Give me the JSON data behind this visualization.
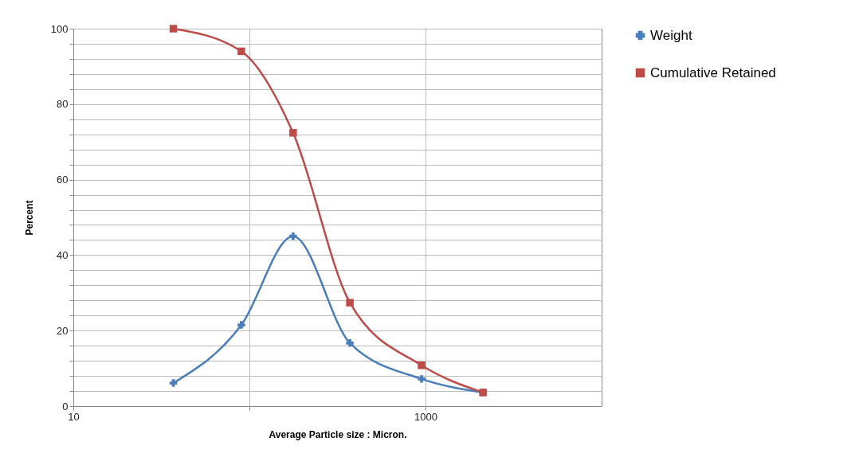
{
  "chart_data": {
    "type": "line",
    "xlabel": "Average Particle size : Micron.",
    "ylabel": "Percent",
    "x": [
      37,
      90,
      177,
      372,
      950,
      2120
    ],
    "log": "x",
    "xlim": [
      10,
      10000
    ],
    "xticks": [
      10,
      {
        "value": 100,
        "label": null
      },
      1000
    ],
    "ylim": [
      0,
      100
    ],
    "yticks": [
      0,
      {
        "value": 4,
        "label": null
      },
      {
        "value": 8,
        "label": null
      },
      {
        "value": 12,
        "label": null
      },
      {
        "value": 16,
        "label": null
      },
      20,
      {
        "value": 24,
        "label": null
      },
      {
        "value": 28,
        "label": null
      },
      {
        "value": 32,
        "label": null
      },
      {
        "value": 36,
        "label": null
      },
      40,
      {
        "value": 44,
        "label": null
      },
      {
        "value": 48,
        "label": null
      },
      {
        "value": 52,
        "label": null
      },
      {
        "value": 56,
        "label": null
      },
      60,
      {
        "value": 64,
        "label": null
      },
      {
        "value": 68,
        "label": null
      },
      {
        "value": 72,
        "label": null
      },
      {
        "value": 76,
        "label": null
      },
      80,
      {
        "value": 84,
        "label": null
      },
      {
        "value": 88,
        "label": null
      },
      {
        "value": 92,
        "label": null
      },
      {
        "value": 96,
        "label": null
      },
      100
    ],
    "grid": true,
    "legend": "right",
    "line_style": "solid",
    "series": [
      {
        "name": "Weight",
        "color": "#4a7ebb",
        "marker": "cross",
        "values": [
          6.1,
          21.5,
          45,
          16.7,
          7.2,
          3.6
        ]
      },
      {
        "name": "Cumulative Retained",
        "color": "#be4b48",
        "marker": "square",
        "values": [
          100,
          94,
          72.4,
          27.4,
          10.8,
          3.6
        ]
      }
    ]
  }
}
